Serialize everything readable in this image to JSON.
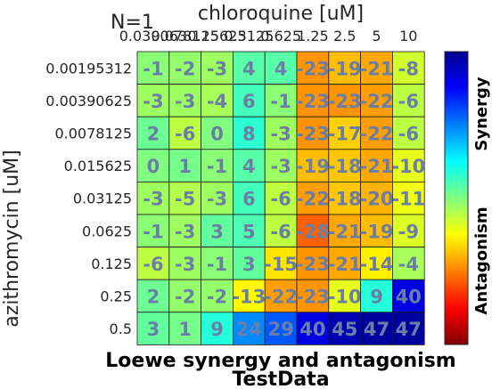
{
  "chart_data": {
    "type": "heatmap",
    "annotation": "N=1",
    "title": "Loewe synergy and antagonism",
    "subtitle": "TestData",
    "xlabel": "chloroquine [uM]",
    "ylabel": "azithromycin [uM]",
    "x_ticks": [
      "0.039063",
      "0.078125",
      "0.15625",
      "0.3125",
      "0.625",
      "1.25",
      "2.5",
      "5",
      "10"
    ],
    "y_ticks": [
      "0.00195312",
      "0.00390625",
      "0.0078125",
      "0.015625",
      "0.03125",
      "0.0625",
      "0.125",
      "0.25",
      "0.5"
    ],
    "values": [
      [
        -1,
        -2,
        -3,
        4,
        4,
        -23,
        -19,
        -21,
        -8
      ],
      [
        -3,
        -3,
        -4,
        6,
        -1,
        -23,
        -23,
        -22,
        -6
      ],
      [
        2,
        -6,
        0,
        8,
        -3,
        -23,
        -17,
        -22,
        -6
      ],
      [
        0,
        1,
        -1,
        4,
        -3,
        -19,
        -18,
        -21,
        -10
      ],
      [
        -3,
        -5,
        -3,
        6,
        -6,
        -22,
        -18,
        -20,
        -11
      ],
      [
        -1,
        -3,
        3,
        5,
        -6,
        -28,
        -21,
        -19,
        -9
      ],
      [
        -6,
        -3,
        -1,
        3,
        -15,
        -23,
        -21,
        -14,
        -4
      ],
      [
        2,
        -2,
        -2,
        -13,
        -22,
        -23,
        -10,
        9,
        40
      ],
      [
        3,
        1,
        9,
        24,
        29,
        40,
        45,
        47,
        47
      ]
    ],
    "color_range": [
      -50,
      50
    ],
    "colormap": "jet-reversed",
    "colorbar_labels": {
      "top": "Synergy",
      "bottom": "Antagonism"
    },
    "grid": true
  }
}
